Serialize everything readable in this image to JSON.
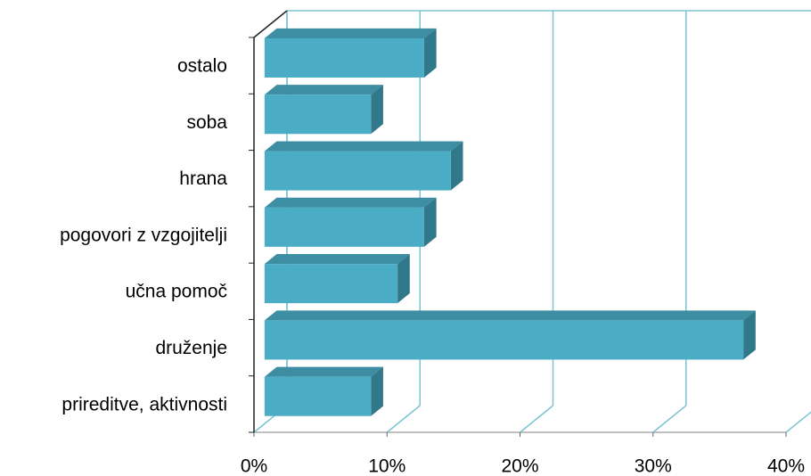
{
  "chart_data": {
    "type": "bar3d_horizontal",
    "categories": [
      "ostalo",
      "soba",
      "hrana",
      "pogovori z vzgojitelji",
      "učna pomoč",
      "druženje",
      "prireditve, aktivnosti"
    ],
    "values": [
      12,
      8,
      14,
      12,
      10,
      36,
      8
    ],
    "color": "#4bacc6",
    "xlim": [
      0,
      40
    ],
    "xticks": [
      {
        "value": 0,
        "label": "0%"
      },
      {
        "value": 10,
        "label": "10%"
      },
      {
        "value": 20,
        "label": "20%"
      },
      {
        "value": 30,
        "label": "30%"
      },
      {
        "value": 40,
        "label": "40%"
      }
    ],
    "grid": true
  }
}
